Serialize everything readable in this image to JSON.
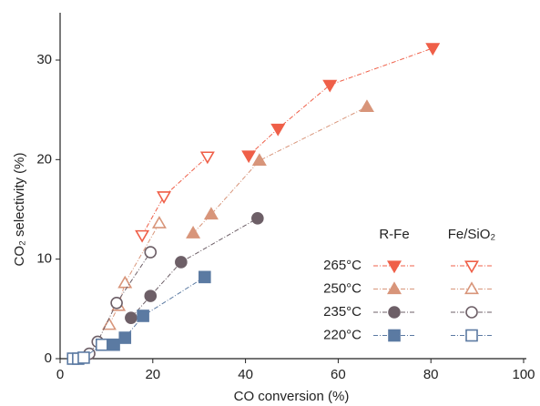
{
  "chart_data": {
    "type": "scatter",
    "x_label": "CO conversion (%)",
    "y_label": "CO₂ selectivity (%)",
    "legend_columns": [
      "R-Fe",
      "Fe/SiO₂"
    ],
    "xlim": [
      0,
      100
    ],
    "xticks": [
      0,
      20,
      40,
      60,
      80,
      100
    ],
    "ylim": [
      0,
      35
    ],
    "yticks": [
      0,
      10,
      20,
      30
    ],
    "series": [
      {
        "name": "265°C",
        "column": 0,
        "marker": "triangle-down",
        "filled": true,
        "color": "#ef5f48",
        "x": [
          40.7,
          47,
          58.2,
          80.4
        ],
        "values": [
          20.4,
          23.1,
          27.5,
          31.2
        ]
      },
      {
        "name": "250°C",
        "column": 0,
        "marker": "triangle-up",
        "filled": true,
        "color": "#d8957a",
        "x": [
          28.7,
          32.6,
          43,
          66.2
        ],
        "values": [
          12.6,
          14.5,
          19.9,
          25.3
        ]
      },
      {
        "name": "235°C",
        "column": 0,
        "marker": "circle",
        "filled": true,
        "color": "#6d5f67",
        "x": [
          15.3,
          19.5,
          26.1,
          42.6
        ],
        "values": [
          4.1,
          6.3,
          9.7,
          14.1
        ]
      },
      {
        "name": "220°C",
        "column": 0,
        "marker": "square",
        "filled": true,
        "color": "#5b7aa2",
        "x": [
          11.6,
          14,
          17.9,
          31.2
        ],
        "values": [
          1.4,
          2.1,
          4.3,
          8.2
        ]
      },
      {
        "name": "265°C",
        "column": 1,
        "marker": "triangle-down",
        "filled": false,
        "color": "#ef5f48",
        "x": [
          17.7,
          22.4,
          31.8
        ],
        "values": [
          12.4,
          16.3,
          20.3
        ]
      },
      {
        "name": "250°C",
        "column": 1,
        "marker": "triangle-up",
        "filled": false,
        "color": "#d8957a",
        "x": [
          10.6,
          12.6,
          14,
          21.4
        ],
        "values": [
          3.4,
          5.3,
          7.6,
          13.6
        ]
      },
      {
        "name": "235°C",
        "column": 1,
        "marker": "circle",
        "filled": false,
        "color": "#6d5f67",
        "x": [
          6.3,
          8.1,
          12.2,
          19.5
        ],
        "values": [
          0.5,
          1.7,
          5.6,
          10.7
        ]
      },
      {
        "name": "220°C",
        "column": 1,
        "marker": "square",
        "filled": false,
        "color": "#5b7aa2",
        "x": [
          2.8,
          3.9,
          5.1,
          9
        ],
        "values": [
          0,
          0,
          0.1,
          1.4
        ]
      }
    ]
  }
}
